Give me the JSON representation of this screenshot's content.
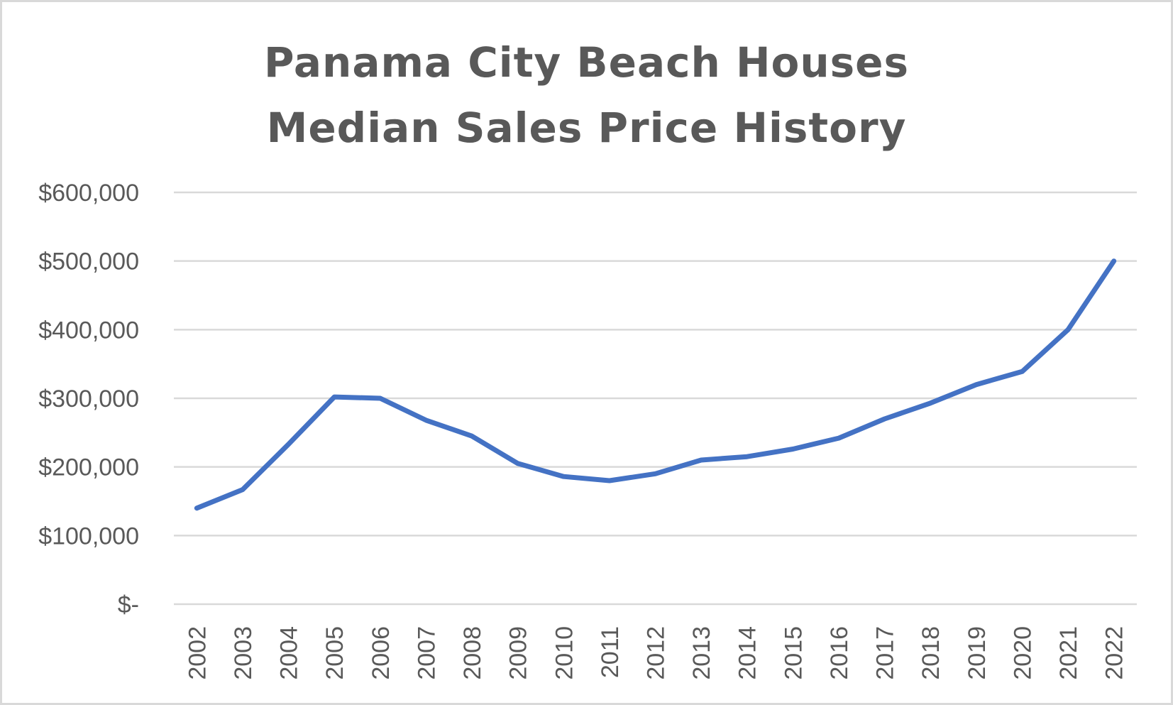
{
  "chart": {
    "title_line1": "Panama City Beach Houses",
    "title_line2": "Median Sales Price History"
  },
  "colors": {
    "line": "#4472c4",
    "gridline": "#d9d9d9",
    "text": "#595959",
    "border": "#d9d9d9"
  },
  "chart_data": {
    "type": "line",
    "title": "Panama City Beach Houses Median Sales Price History",
    "xlabel": "",
    "ylabel": "",
    "categories": [
      "2002",
      "2003",
      "2004",
      "2005",
      "2006",
      "2007",
      "2008",
      "2009",
      "2010",
      "2011",
      "2012",
      "2013",
      "2014",
      "2015",
      "2016",
      "2017",
      "2018",
      "2019",
      "2020",
      "2021",
      "2022"
    ],
    "series": [
      {
        "name": "Median Sales Price",
        "values": [
          140000,
          167000,
          233000,
          302000,
          300000,
          268000,
          245000,
          205000,
          186000,
          180000,
          190000,
          210000,
          215000,
          226000,
          242000,
          270000,
          293000,
          320000,
          339000,
          400000,
          500000
        ]
      }
    ],
    "ylim": [
      0,
      600000
    ],
    "yticks": [
      0,
      100000,
      200000,
      300000,
      400000,
      500000,
      600000
    ],
    "ytick_labels": [
      "$-",
      "$100,000",
      "$200,000",
      "$300,000",
      "$400,000",
      "$500,000",
      "$600,000"
    ],
    "grid": true,
    "legend": "none",
    "x_label_rotation": -90
  }
}
